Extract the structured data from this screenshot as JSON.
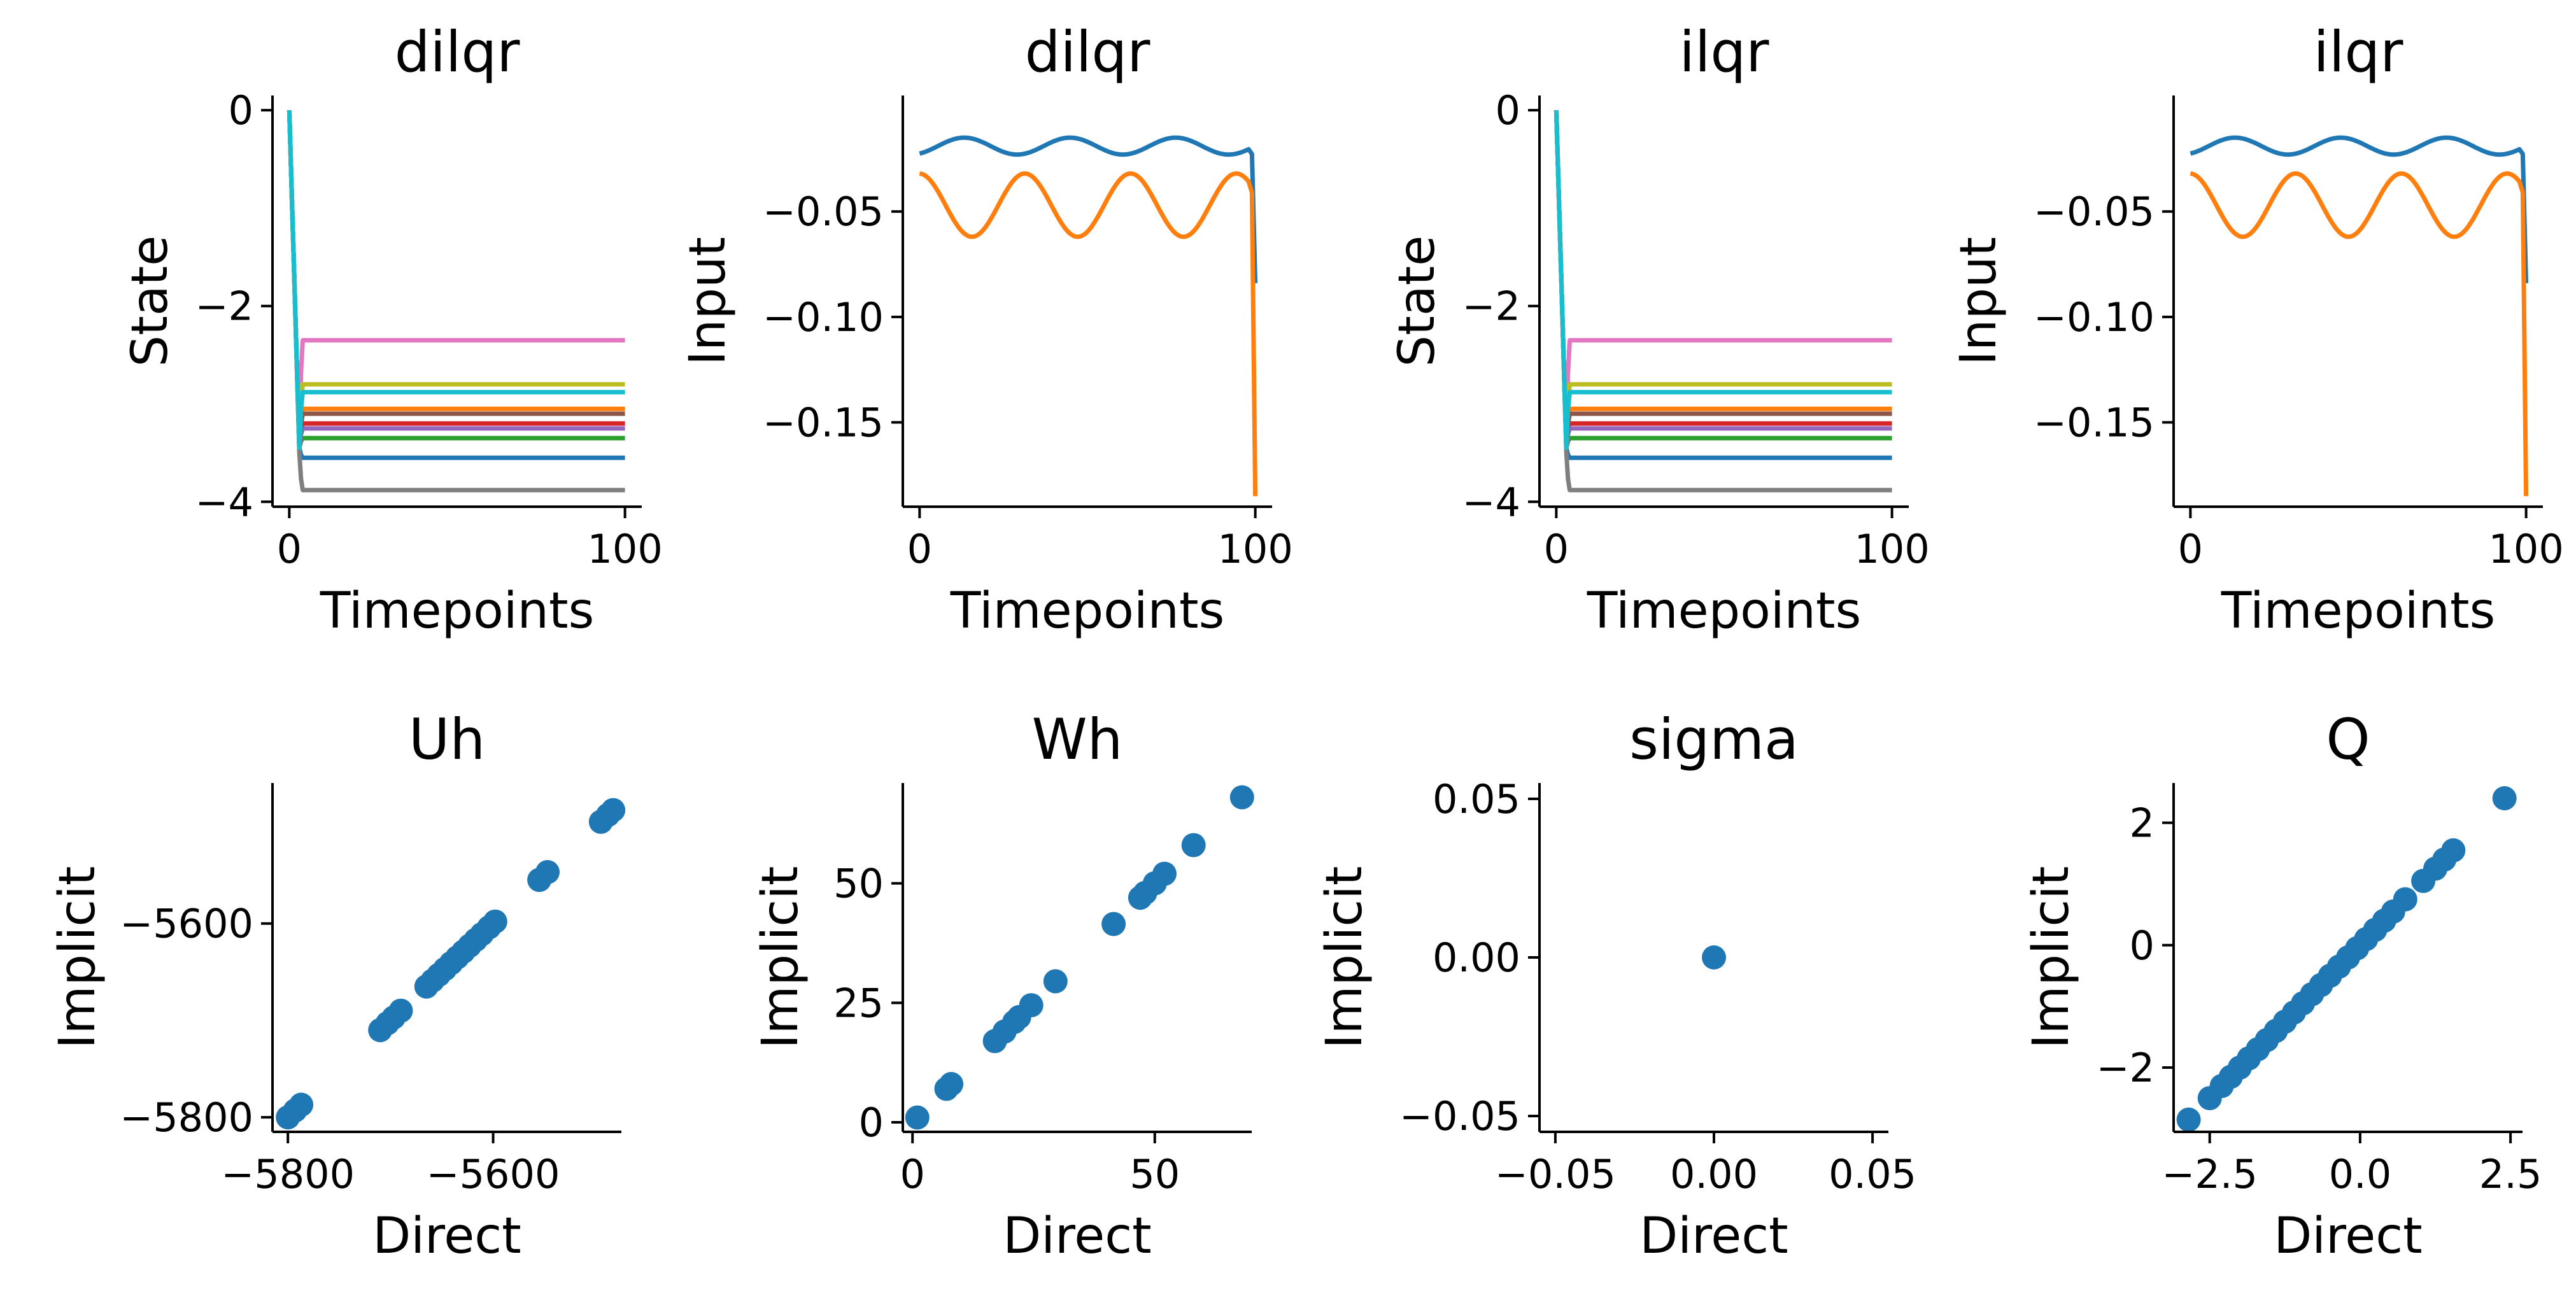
{
  "colors": {
    "tab10": [
      "#1f77b4",
      "#ff7f0e",
      "#2ca02c",
      "#d62728",
      "#9467bd",
      "#8c564b",
      "#e377c2",
      "#7f7f7f",
      "#bcbd22",
      "#17becf"
    ],
    "scatter": "#1f77b4"
  },
  "chart_data": [
    {
      "id": "p0",
      "type": "line",
      "title": "dilqr",
      "xlabel": "Timepoints",
      "ylabel": "State",
      "xlim": [
        -5,
        105
      ],
      "ylim": [
        -4.05,
        0.15
      ],
      "xticks": [
        0,
        100
      ],
      "xticklabels": [
        "0",
        "100"
      ],
      "yticks": [
        0,
        -2,
        -4
      ],
      "yticklabels": [
        "0",
        "−2",
        "−4"
      ],
      "series_kind": "state",
      "series": [
        {
          "color_index": 0,
          "y0": 0,
          "dip": -3.45,
          "level": -3.55
        },
        {
          "color_index": 1,
          "y0": 0,
          "dip": -3.45,
          "level": -3.05
        },
        {
          "color_index": 2,
          "y0": 0,
          "dip": -3.45,
          "level": -3.35
        },
        {
          "color_index": 3,
          "y0": 0,
          "dip": -3.45,
          "level": -3.2
        },
        {
          "color_index": 4,
          "y0": 0,
          "dip": -3.45,
          "level": -3.25
        },
        {
          "color_index": 5,
          "y0": 0,
          "dip": -3.45,
          "level": -3.1
        },
        {
          "color_index": 6,
          "y0": 0,
          "dip": -3.45,
          "level": -2.35
        },
        {
          "color_index": 7,
          "y0": 0,
          "dip": -3.5,
          "level": -3.88
        },
        {
          "color_index": 8,
          "y0": 0,
          "dip": -3.45,
          "level": -2.8
        },
        {
          "color_index": 9,
          "y0": 0,
          "dip": -3.45,
          "level": -2.88
        }
      ]
    },
    {
      "id": "p1",
      "type": "line",
      "title": "dilqr",
      "xlabel": "Timepoints",
      "ylabel": "Input",
      "xlim": [
        -5,
        105
      ],
      "ylim": [
        -0.19,
        0.005
      ],
      "xticks": [
        0,
        100
      ],
      "xticklabels": [
        "0",
        "100"
      ],
      "yticks": [
        -0.05,
        -0.1,
        -0.15
      ],
      "yticklabels": [
        "−0.05",
        "−0.10",
        "−0.15"
      ],
      "series_kind": "input",
      "series": [
        {
          "color_index": 0,
          "base": -0.019,
          "amp": 0.004,
          "phase": 5.2,
          "end": -0.084
        },
        {
          "color_index": 1,
          "base": -0.047,
          "amp": 0.015,
          "phase": 1.6,
          "end": -0.185
        }
      ]
    },
    {
      "id": "p2",
      "type": "line",
      "title": "ilqr",
      "xlabel": "Timepoints",
      "ylabel": "State",
      "xlim": [
        -5,
        105
      ],
      "ylim": [
        -4.05,
        0.15
      ],
      "xticks": [
        0,
        100
      ],
      "xticklabels": [
        "0",
        "100"
      ],
      "yticks": [
        0,
        -2,
        -4
      ],
      "yticklabels": [
        "0",
        "−2",
        "−4"
      ],
      "series_kind": "state",
      "series": [
        {
          "color_index": 0,
          "y0": 0,
          "dip": -3.45,
          "level": -3.55
        },
        {
          "color_index": 1,
          "y0": 0,
          "dip": -3.45,
          "level": -3.05
        },
        {
          "color_index": 2,
          "y0": 0,
          "dip": -3.45,
          "level": -3.35
        },
        {
          "color_index": 3,
          "y0": 0,
          "dip": -3.45,
          "level": -3.2
        },
        {
          "color_index": 4,
          "y0": 0,
          "dip": -3.45,
          "level": -3.25
        },
        {
          "color_index": 5,
          "y0": 0,
          "dip": -3.45,
          "level": -3.1
        },
        {
          "color_index": 6,
          "y0": 0,
          "dip": -3.45,
          "level": -2.35
        },
        {
          "color_index": 7,
          "y0": 0,
          "dip": -3.5,
          "level": -3.88
        },
        {
          "color_index": 8,
          "y0": 0,
          "dip": -3.45,
          "level": -2.8
        },
        {
          "color_index": 9,
          "y0": 0,
          "dip": -3.45,
          "level": -2.88
        }
      ]
    },
    {
      "id": "p3",
      "type": "line",
      "title": "ilqr",
      "xlabel": "Timepoints",
      "ylabel": "Input",
      "xlim": [
        -5,
        105
      ],
      "ylim": [
        -0.19,
        0.005
      ],
      "xticks": [
        0,
        100
      ],
      "xticklabels": [
        "0",
        "100"
      ],
      "yticks": [
        -0.05,
        -0.1,
        -0.15
      ],
      "yticklabels": [
        "−0.05",
        "−0.10",
        "−0.15"
      ],
      "series_kind": "input",
      "series": [
        {
          "color_index": 0,
          "base": -0.019,
          "amp": 0.004,
          "phase": 5.2,
          "end": -0.084
        },
        {
          "color_index": 1,
          "base": -0.047,
          "amp": 0.015,
          "phase": 1.6,
          "end": -0.185
        }
      ]
    },
    {
      "id": "p4",
      "type": "scatter",
      "title": "Uh",
      "xlabel": "Direct",
      "ylabel": "Implicit",
      "xlim": [
        -5815,
        -5475
      ],
      "ylim": [
        -5815,
        -5455
      ],
      "xticks": [
        -5800,
        -5600
      ],
      "xticklabels": [
        "−5800",
        "−5600"
      ],
      "yticks": [
        -5600,
        -5800
      ],
      "yticklabels": [
        "−5600",
        "−5800"
      ],
      "points": [
        [
          -5800,
          -5800
        ],
        [
          -5793,
          -5793
        ],
        [
          -5787,
          -5787
        ],
        [
          -5710,
          -5710
        ],
        [
          -5703,
          -5703
        ],
        [
          -5697,
          -5697
        ],
        [
          -5690,
          -5690
        ],
        [
          -5665,
          -5665
        ],
        [
          -5659,
          -5659
        ],
        [
          -5653,
          -5653
        ],
        [
          -5647,
          -5647
        ],
        [
          -5641,
          -5641
        ],
        [
          -5635,
          -5635
        ],
        [
          -5629,
          -5629
        ],
        [
          -5623,
          -5623
        ],
        [
          -5617,
          -5617
        ],
        [
          -5611,
          -5611
        ],
        [
          -5604,
          -5604
        ],
        [
          -5598,
          -5598
        ],
        [
          -5555,
          -5555
        ],
        [
          -5547,
          -5547
        ],
        [
          -5495,
          -5495
        ],
        [
          -5488,
          -5488
        ],
        [
          -5483,
          -5483
        ]
      ]
    },
    {
      "id": "p5",
      "type": "scatter",
      "title": "Wh",
      "xlabel": "Direct",
      "ylabel": "Implicit",
      "xlim": [
        -2,
        70
      ],
      "ylim": [
        -2,
        71
      ],
      "xticks": [
        0,
        50
      ],
      "xticklabels": [
        "0",
        "50"
      ],
      "yticks": [
        0,
        25,
        50
      ],
      "yticklabels": [
        "0",
        "25",
        "50"
      ],
      "points": [
        [
          1,
          1
        ],
        [
          7,
          7
        ],
        [
          8,
          8
        ],
        [
          17,
          17
        ],
        [
          19,
          19
        ],
        [
          21,
          21
        ],
        [
          22,
          22
        ],
        [
          24.5,
          24.5
        ],
        [
          29.5,
          29.5
        ],
        [
          41.5,
          41.5
        ],
        [
          47,
          47
        ],
        [
          48,
          48
        ],
        [
          50,
          50
        ],
        [
          52,
          52
        ],
        [
          58,
          58
        ],
        [
          68,
          68
        ]
      ]
    },
    {
      "id": "p6",
      "type": "scatter",
      "title": "sigma",
      "xlabel": "Direct",
      "ylabel": "Implicit",
      "xlim": [
        -0.055,
        0.055
      ],
      "ylim": [
        -0.055,
        0.055
      ],
      "xticks": [
        -0.05,
        0.0,
        0.05
      ],
      "xticklabels": [
        "−0.05",
        "0.00",
        "0.05"
      ],
      "yticks": [
        0.05,
        0.0,
        -0.05
      ],
      "yticklabels": [
        "0.05",
        "0.00",
        "−0.05"
      ],
      "points": [
        [
          0,
          0
        ]
      ]
    },
    {
      "id": "p7",
      "type": "scatter",
      "title": "Q",
      "xlabel": "Direct",
      "ylabel": "Implicit",
      "xlim": [
        -3.1,
        2.7
      ],
      "ylim": [
        -3.05,
        2.65
      ],
      "xticks": [
        -2.5,
        0.0,
        2.5
      ],
      "xticklabels": [
        "−2.5",
        "0.0",
        "2.5"
      ],
      "yticks": [
        2,
        0,
        -2
      ],
      "yticklabels": [
        "2",
        "0",
        "−2"
      ],
      "points": [
        [
          -2.85,
          -2.85
        ],
        [
          -2.5,
          -2.5
        ],
        [
          -2.3,
          -2.3
        ],
        [
          -2.15,
          -2.15
        ],
        [
          -2.0,
          -2.0
        ],
        [
          -1.85,
          -1.85
        ],
        [
          -1.7,
          -1.7
        ],
        [
          -1.55,
          -1.55
        ],
        [
          -1.4,
          -1.4
        ],
        [
          -1.25,
          -1.25
        ],
        [
          -1.1,
          -1.1
        ],
        [
          -0.95,
          -0.95
        ],
        [
          -0.8,
          -0.8
        ],
        [
          -0.65,
          -0.65
        ],
        [
          -0.5,
          -0.5
        ],
        [
          -0.35,
          -0.35
        ],
        [
          -0.2,
          -0.2
        ],
        [
          -0.05,
          -0.05
        ],
        [
          0.1,
          0.1
        ],
        [
          0.25,
          0.25
        ],
        [
          0.4,
          0.4
        ],
        [
          0.55,
          0.55
        ],
        [
          0.75,
          0.75
        ],
        [
          1.05,
          1.05
        ],
        [
          1.25,
          1.25
        ],
        [
          1.4,
          1.4
        ],
        [
          1.55,
          1.55
        ],
        [
          2.4,
          2.4
        ]
      ]
    }
  ]
}
